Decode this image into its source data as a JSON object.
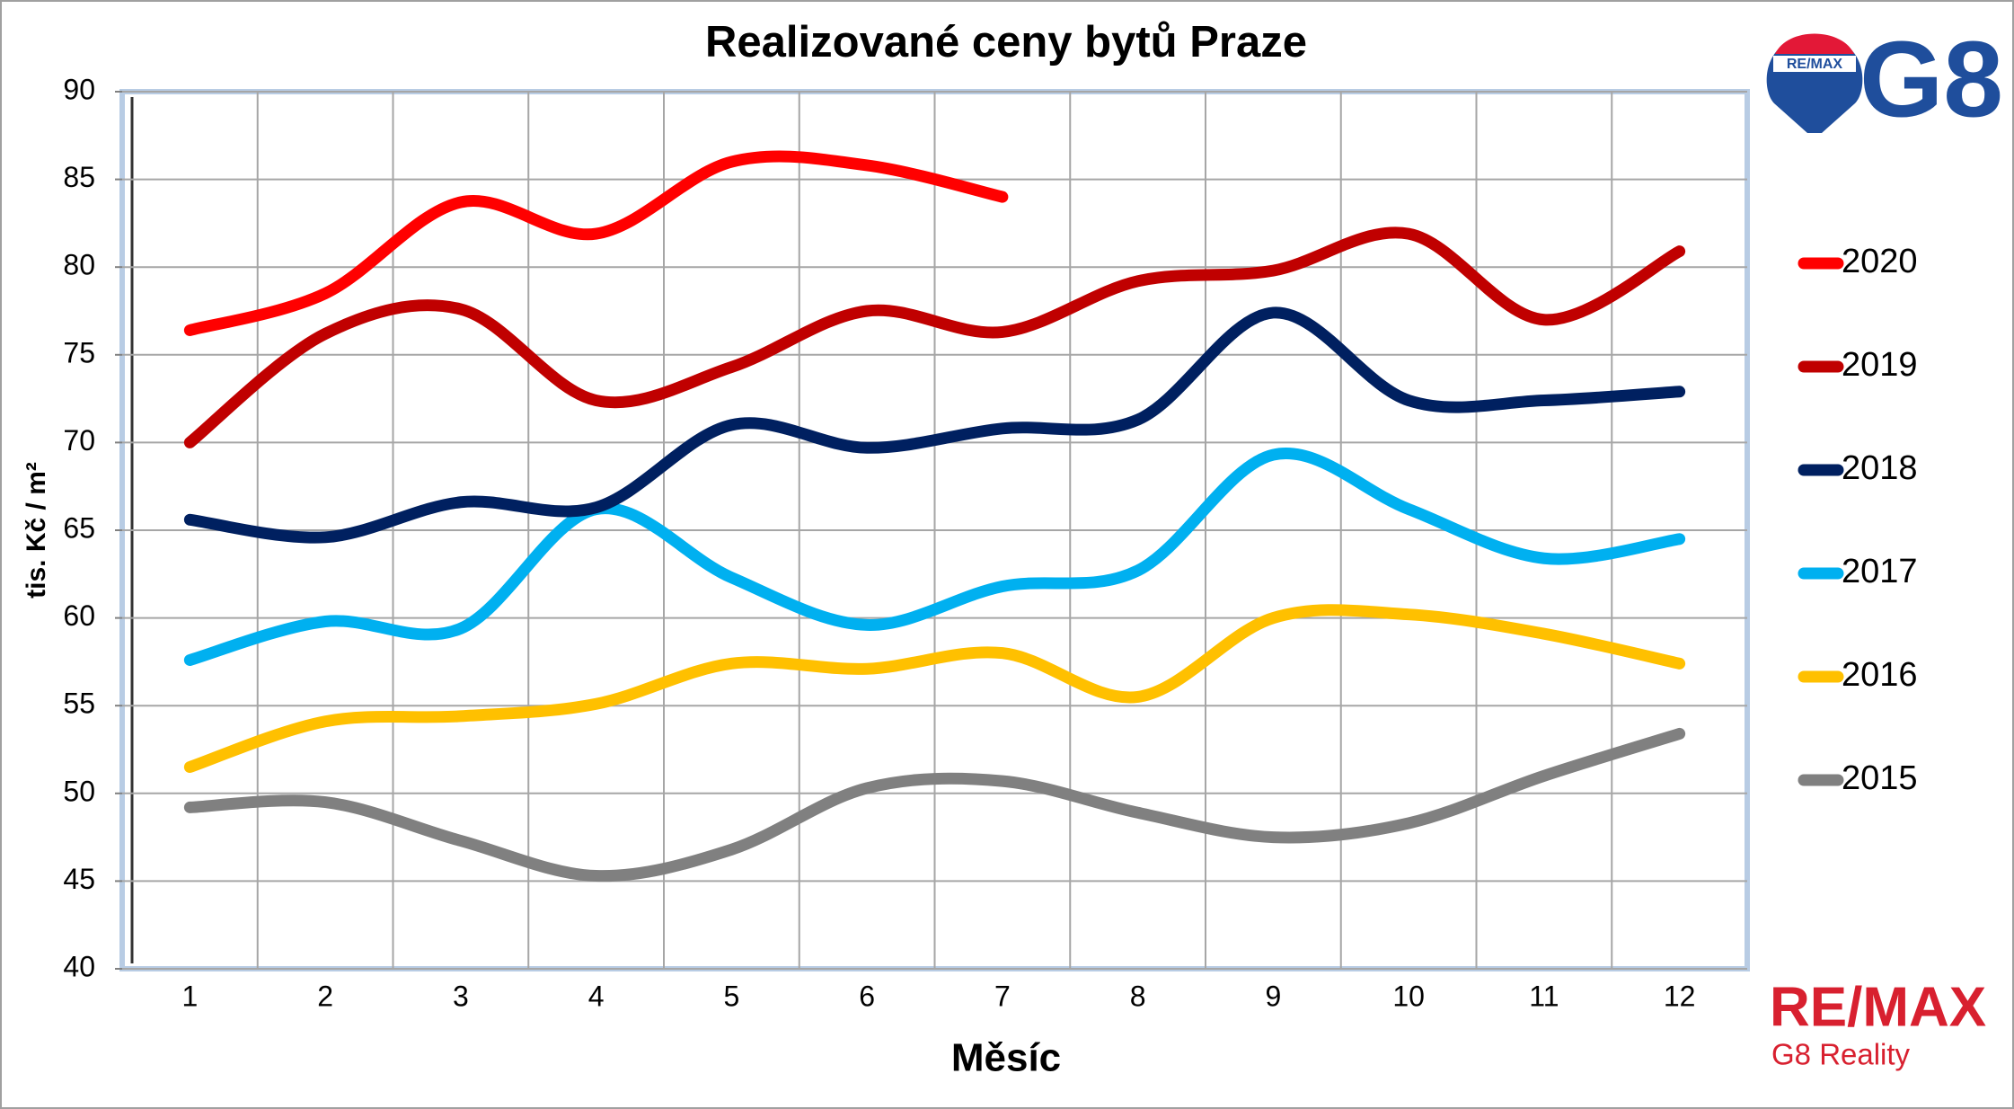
{
  "chart_data": {
    "type": "line",
    "title": "Realizované ceny bytů Praze",
    "x_label": "Měsíc",
    "y_label": "tis. Kč / m²",
    "categories": [
      1,
      2,
      3,
      4,
      5,
      6,
      7,
      8,
      9,
      10,
      11,
      12
    ],
    "ylim": [
      40,
      90
    ],
    "yticks": [
      40,
      45,
      50,
      55,
      60,
      65,
      70,
      75,
      80,
      85,
      90
    ],
    "grid": true,
    "legend": "right",
    "smooth": true,
    "series": [
      {
        "name": "2020",
        "color": "#ff0000",
        "values": [
          76.4,
          78.5,
          83.7,
          81.9,
          86.0,
          85.8,
          84.0,
          null,
          null,
          null,
          null,
          null
        ]
      },
      {
        "name": "2019",
        "color": "#c00000",
        "values": [
          70.0,
          76.2,
          77.6,
          72.4,
          74.3,
          77.5,
          76.3,
          79.2,
          79.8,
          81.9,
          77.0,
          80.9
        ]
      },
      {
        "name": "2018",
        "color": "#002060",
        "values": [
          65.6,
          64.6,
          66.6,
          66.3,
          71.0,
          69.7,
          70.8,
          71.3,
          77.4,
          72.4,
          72.4,
          72.9
        ]
      },
      {
        "name": "2017",
        "color": "#00b0f0",
        "values": [
          57.6,
          59.8,
          59.4,
          66.2,
          62.3,
          59.6,
          61.8,
          62.7,
          69.3,
          66.2,
          63.4,
          64.5
        ]
      },
      {
        "name": "2016",
        "color": "#ffc000",
        "values": [
          51.5,
          54.1,
          54.4,
          55.1,
          57.4,
          57.1,
          58.0,
          55.5,
          60.0,
          60.2,
          59.1,
          57.4
        ]
      },
      {
        "name": "2015",
        "color": "#808080",
        "values": [
          49.2,
          49.5,
          47.3,
          45.3,
          46.8,
          50.3,
          50.7,
          48.9,
          47.5,
          48.3,
          51.0,
          53.4
        ]
      }
    ]
  },
  "logo": {
    "balloon_text": "RE/MAX",
    "brand_top": "G8",
    "brand": "RE/MAX",
    "brand_sub": "G8 Reality"
  }
}
